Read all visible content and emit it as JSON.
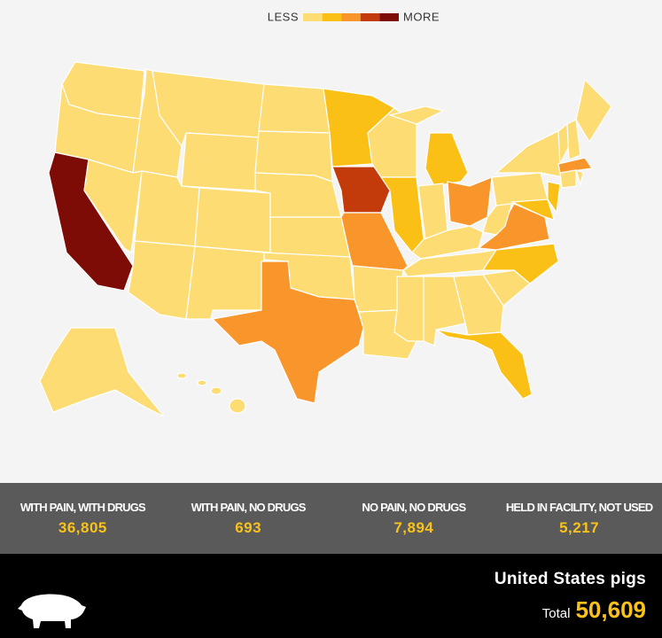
{
  "legend": {
    "low": "LESS",
    "high": "MORE",
    "colors": [
      "#fddc74",
      "#fbc016",
      "#f9962b",
      "#c33a0b",
      "#7d0c06"
    ]
  },
  "stats": [
    {
      "label": "WITH PAIN, WITH DRUGS",
      "value": "36,805"
    },
    {
      "label": "WITH PAIN, NO DRUGS",
      "value": "693"
    },
    {
      "label": "NO PAIN, NO DRUGS",
      "value": "7,894"
    },
    {
      "label": "HELD IN FACILITY, NOT USED",
      "value": "5,217"
    }
  ],
  "footer": {
    "title": "United States pigs",
    "total_label": "Total",
    "total": "50,609"
  }
}
